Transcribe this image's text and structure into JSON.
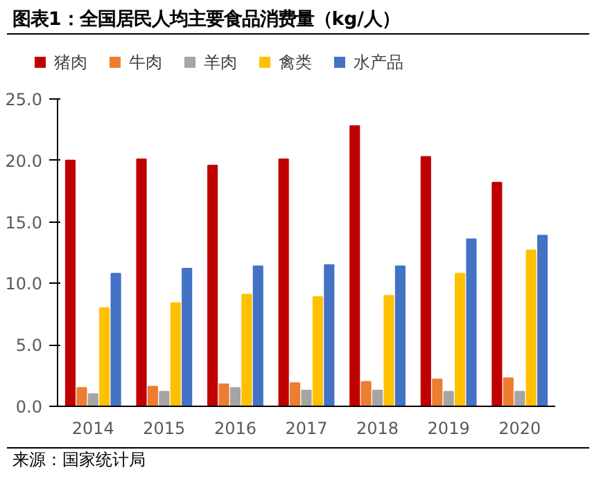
{
  "chart_data": {
    "type": "bar",
    "title": "图表1：全国居民人均主要食品消费量（kg/人）",
    "categories": [
      "2014",
      "2015",
      "2016",
      "2017",
      "2018",
      "2019",
      "2020"
    ],
    "series": [
      {
        "name": "猪肉",
        "color": "#c00000",
        "values": [
          20.0,
          20.1,
          19.6,
          20.1,
          22.8,
          20.3,
          18.2
        ]
      },
      {
        "name": "牛肉",
        "color": "#ed7d31",
        "values": [
          1.5,
          1.6,
          1.8,
          1.9,
          2.0,
          2.2,
          2.3
        ]
      },
      {
        "name": "羊肉",
        "color": "#a5a5a5",
        "values": [
          1.0,
          1.2,
          1.5,
          1.3,
          1.3,
          1.2,
          1.2
        ]
      },
      {
        "name": "禽类",
        "color": "#ffc000",
        "values": [
          8.0,
          8.4,
          9.1,
          8.9,
          9.0,
          10.8,
          12.7
        ]
      },
      {
        "name": "水产品",
        "color": "#4472c4",
        "values": [
          10.8,
          11.2,
          11.4,
          11.5,
          11.4,
          13.6,
          13.9
        ]
      }
    ],
    "ylim": [
      0,
      25
    ],
    "yticks": [
      {
        "value": 0,
        "label": "0.0"
      },
      {
        "value": 5,
        "label": "5.0"
      },
      {
        "value": 10,
        "label": "10.0"
      },
      {
        "value": 15,
        "label": "15.0"
      },
      {
        "value": 20,
        "label": "20.0"
      },
      {
        "value": 25,
        "label": "25.0"
      }
    ],
    "grid": false,
    "legend": "top",
    "annotations": [
      "来源：国家统计局"
    ]
  }
}
